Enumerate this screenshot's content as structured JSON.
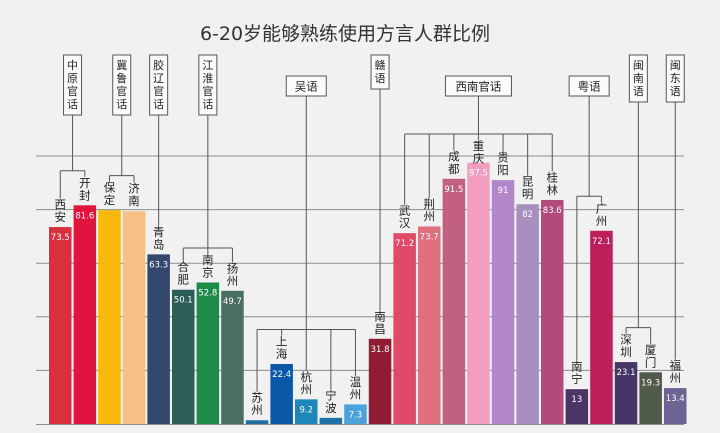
{
  "chart_data": {
    "type": "bar",
    "title": "6-20岁能够熟练使用方言人群比例",
    "xlabel": "",
    "ylabel": "",
    "ylim": [
      0,
      100
    ],
    "grid": true,
    "categories": [
      "西安",
      "开封",
      "保定",
      "济南",
      "青岛",
      "合肥",
      "南京",
      "扬州",
      "苏州",
      "上海",
      "杭州",
      "宁波",
      "温州",
      "南昌",
      "武汉",
      "荆州",
      "成都",
      "重庆",
      "贵阳",
      "昆明",
      "桂林",
      "南宁",
      "广州",
      "深圳",
      "厦门",
      "福州"
    ],
    "values": [
      73.5,
      81.6,
      79.8,
      79.4,
      63.3,
      50.1,
      52.8,
      49.7,
      1.4,
      22.4,
      9.2,
      2.3,
      7.3,
      31.8,
      71.2,
      73.7,
      91.5,
      97.5,
      91,
      82,
      83.6,
      13,
      72.1,
      23.1,
      19.3,
      13.4
    ],
    "value_labels": [
      "73.5",
      "81.6",
      "",
      "",
      "63.3",
      "50.1",
      "52.8",
      "49.7",
      "",
      "22.4",
      "9.2",
      "",
      "7.3",
      "31.8",
      "71.2",
      "73.7",
      "91.5",
      "97.5",
      "91",
      "82",
      "83.6",
      "13",
      "72.1",
      "23.1",
      "19.3",
      "13.4"
    ],
    "colors": [
      "#d9303f",
      "#e0143e",
      "#f8b80d",
      "#f6c084",
      "#34476c",
      "#2d5d57",
      "#1d8a4a",
      "#4a6e61",
      "#1d6fa0",
      "#0b58a8",
      "#1f86b9",
      "#2171a9",
      "#4ba2d9",
      "#8f1c33",
      "#e04a67",
      "#e0707e",
      "#c2617f",
      "#f39ec0",
      "#b286c8",
      "#a88fc0",
      "#b24a7c",
      "#4b3566",
      "#bc1f5a",
      "#463668",
      "#4f5a4a",
      "#6e6494"
    ],
    "groups": [
      {
        "name": "中原官话",
        "members": [
          "西安",
          "开封"
        ]
      },
      {
        "name": "冀鲁官话",
        "members": [
          "保定",
          "济南"
        ]
      },
      {
        "name": "胶辽官话",
        "members": [
          "青岛"
        ]
      },
      {
        "name": "江淮官话",
        "members": [
          "合肥",
          "南京",
          "扬州"
        ]
      },
      {
        "name": "吴语",
        "members": [
          "苏州",
          "上海",
          "杭州",
          "宁波",
          "温州"
        ]
      },
      {
        "name": "赣语",
        "members": [
          "南昌"
        ]
      },
      {
        "name": "西南官话",
        "members": [
          "武汉",
          "荆州",
          "成都",
          "重庆",
          "贵阳",
          "昆明",
          "桂林"
        ]
      },
      {
        "name": "粤语",
        "members": [
          "南宁",
          "广州"
        ]
      },
      {
        "name": "闽南语",
        "members": [
          "深圳",
          "厦门"
        ]
      },
      {
        "name": "闽东语",
        "members": [
          "福州"
        ]
      }
    ]
  }
}
